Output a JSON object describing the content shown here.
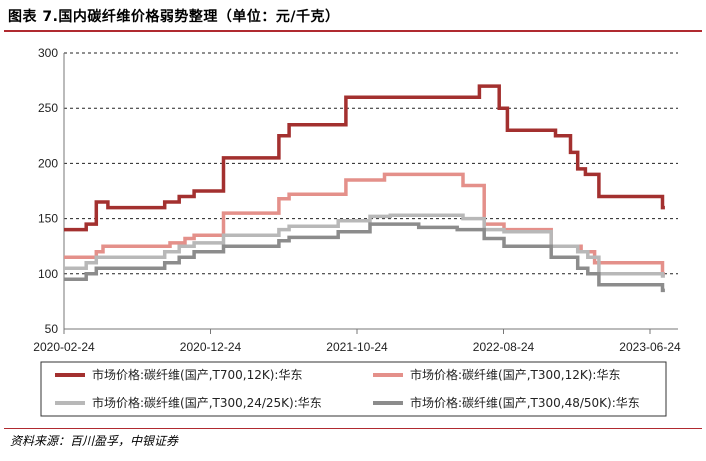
{
  "title": "图表 7.国内碳纤维价格弱势整理（单位：元/千克）",
  "source": "资料来源：百川盈孚，中银证券",
  "chart_data": {
    "type": "line",
    "step": true,
    "ylim": [
      50,
      300
    ],
    "yticks": [
      50,
      100,
      150,
      200,
      250,
      300
    ],
    "xlim": [
      "2020-02-24",
      "2023-08-31"
    ],
    "xticks": [
      "2020-02-24",
      "2020-12-24",
      "2021-10-24",
      "2022-08-24",
      "2023-06-24"
    ],
    "grid": "dashed-horizontal",
    "legend_position": "bottom",
    "series": [
      {
        "name": "市场价格:碳纤维(国产,T700,12K):华东",
        "color": "#a3302f",
        "points": [
          [
            "2020-02-24",
            140
          ],
          [
            "2020-04-10",
            145
          ],
          [
            "2020-05-01",
            165
          ],
          [
            "2020-05-25",
            160
          ],
          [
            "2020-09-20",
            165
          ],
          [
            "2020-10-20",
            170
          ],
          [
            "2020-11-20",
            175
          ],
          [
            "2021-01-20",
            205
          ],
          [
            "2021-05-15",
            225
          ],
          [
            "2021-06-05",
            235
          ],
          [
            "2021-10-01",
            260
          ],
          [
            "2022-07-05",
            270
          ],
          [
            "2022-08-15",
            250
          ],
          [
            "2022-09-01",
            230
          ],
          [
            "2022-12-10",
            225
          ],
          [
            "2023-01-10",
            210
          ],
          [
            "2023-01-25",
            195
          ],
          [
            "2023-02-10",
            190
          ],
          [
            "2023-03-10",
            170
          ],
          [
            "2023-07-20",
            160
          ],
          [
            "2023-07-25",
            160
          ]
        ]
      },
      {
        "name": "市场价格:碳纤维(国产,T300,12K):华东",
        "color": "#e4908a",
        "points": [
          [
            "2020-02-24",
            115
          ],
          [
            "2020-05-01",
            120
          ],
          [
            "2020-05-15",
            125
          ],
          [
            "2020-10-01",
            128
          ],
          [
            "2020-11-01",
            132
          ],
          [
            "2020-11-20",
            135
          ],
          [
            "2021-01-20",
            155
          ],
          [
            "2021-05-15",
            168
          ],
          [
            "2021-06-05",
            172
          ],
          [
            "2021-10-01",
            185
          ],
          [
            "2021-12-20",
            190
          ],
          [
            "2022-06-01",
            180
          ],
          [
            "2022-07-15",
            145
          ],
          [
            "2022-08-25",
            140
          ],
          [
            "2022-12-01",
            125
          ],
          [
            "2023-02-01",
            120
          ],
          [
            "2023-03-01",
            110
          ],
          [
            "2023-07-20",
            100
          ],
          [
            "2023-07-25",
            100
          ]
        ]
      },
      {
        "name": "市场价格:碳纤维(国产,T300,24/25K):华东",
        "color": "#b8b8b8",
        "points": [
          [
            "2020-02-24",
            105
          ],
          [
            "2020-04-10",
            110
          ],
          [
            "2020-05-01",
            115
          ],
          [
            "2020-09-20",
            120
          ],
          [
            "2020-10-20",
            125
          ],
          [
            "2020-11-20",
            128
          ],
          [
            "2021-01-20",
            135
          ],
          [
            "2021-05-15",
            140
          ],
          [
            "2021-06-05",
            143
          ],
          [
            "2021-09-15",
            148
          ],
          [
            "2021-11-20",
            152
          ],
          [
            "2022-01-01",
            153
          ],
          [
            "2022-06-01",
            150
          ],
          [
            "2022-07-15",
            140
          ],
          [
            "2022-08-25",
            138
          ],
          [
            "2022-12-01",
            125
          ],
          [
            "2023-01-25",
            120
          ],
          [
            "2023-02-15",
            115
          ],
          [
            "2023-03-10",
            100
          ],
          [
            "2023-07-20",
            98
          ],
          [
            "2023-07-25",
            98
          ]
        ]
      },
      {
        "name": "市场价格:碳纤维(国产,T300,48/50K):华东",
        "color": "#8c8c8c",
        "points": [
          [
            "2020-02-24",
            95
          ],
          [
            "2020-04-10",
            100
          ],
          [
            "2020-05-01",
            105
          ],
          [
            "2020-09-20",
            110
          ],
          [
            "2020-10-20",
            115
          ],
          [
            "2020-11-20",
            120
          ],
          [
            "2021-01-20",
            125
          ],
          [
            "2021-05-15",
            130
          ],
          [
            "2021-06-05",
            133
          ],
          [
            "2021-09-15",
            138
          ],
          [
            "2021-11-20",
            145
          ],
          [
            "2022-03-01",
            142
          ],
          [
            "2022-05-20",
            140
          ],
          [
            "2022-07-15",
            132
          ],
          [
            "2022-08-25",
            125
          ],
          [
            "2022-12-01",
            115
          ],
          [
            "2023-01-25",
            105
          ],
          [
            "2023-02-15",
            100
          ],
          [
            "2023-03-10",
            90
          ],
          [
            "2023-07-20",
            85
          ],
          [
            "2023-07-25",
            85
          ]
        ]
      }
    ]
  }
}
